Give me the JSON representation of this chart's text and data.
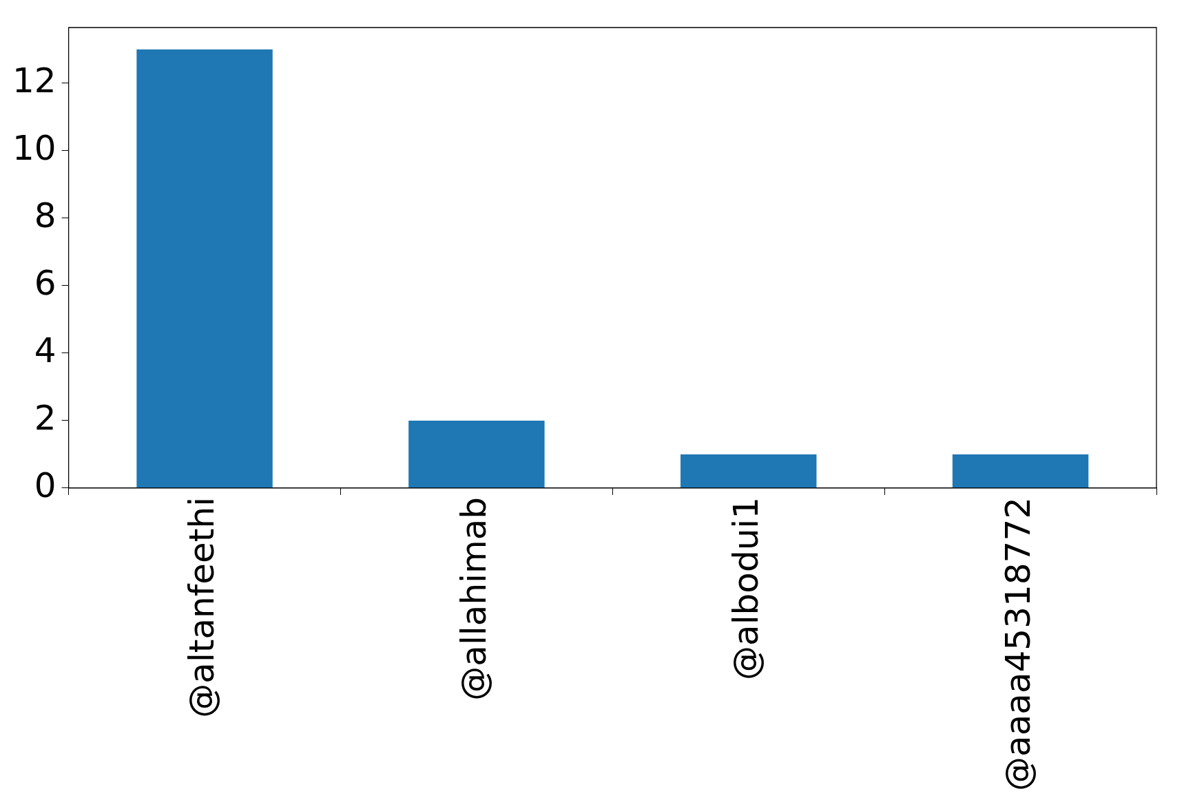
{
  "chart_data": {
    "type": "bar",
    "categories": [
      "@altanfeethi",
      "@allahimab",
      "@albodui1",
      "@aaaa45318772"
    ],
    "values": [
      13,
      2,
      1,
      1
    ],
    "color": "#1f77b4",
    "ylim": [
      0,
      13.65
    ],
    "yticks": [
      0,
      2,
      4,
      6,
      8,
      10,
      12
    ],
    "grid": false,
    "legend": false
  }
}
